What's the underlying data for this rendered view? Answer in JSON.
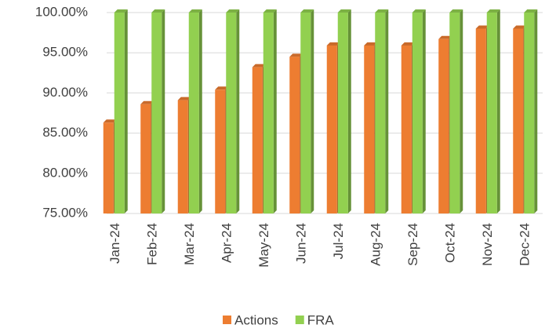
{
  "chart_data": {
    "type": "bar",
    "categories": [
      "Jan-24",
      "Feb-24",
      "Mar-24",
      "Apr-24",
      "May-24",
      "Jun-24",
      "Jul-24",
      "Aug-24",
      "Sep-24",
      "Oct-24",
      "Nov-24",
      "Dec-24"
    ],
    "series": [
      {
        "name": "Actions",
        "color": "#ed7d31",
        "values": [
          86.3,
          88.6,
          89.1,
          90.4,
          93.2,
          94.5,
          95.9,
          95.9,
          95.9,
          96.7,
          98.0,
          98.0
        ]
      },
      {
        "name": "FRA",
        "color": "#92d050",
        "values": [
          100,
          100,
          100,
          100,
          100,
          100,
          100,
          100,
          100,
          100,
          100,
          100
        ]
      }
    ],
    "ylim": [
      75,
      100
    ],
    "yticks": [
      {
        "value": 75,
        "label": "75.00%"
      },
      {
        "value": 80,
        "label": "80.00%"
      },
      {
        "value": 85,
        "label": "85.00%"
      },
      {
        "value": 90,
        "label": "90.00%"
      },
      {
        "value": 95,
        "label": "95.00%"
      },
      {
        "value": 100,
        "label": "100.00%"
      }
    ],
    "grid": true,
    "legend": "bottom"
  }
}
